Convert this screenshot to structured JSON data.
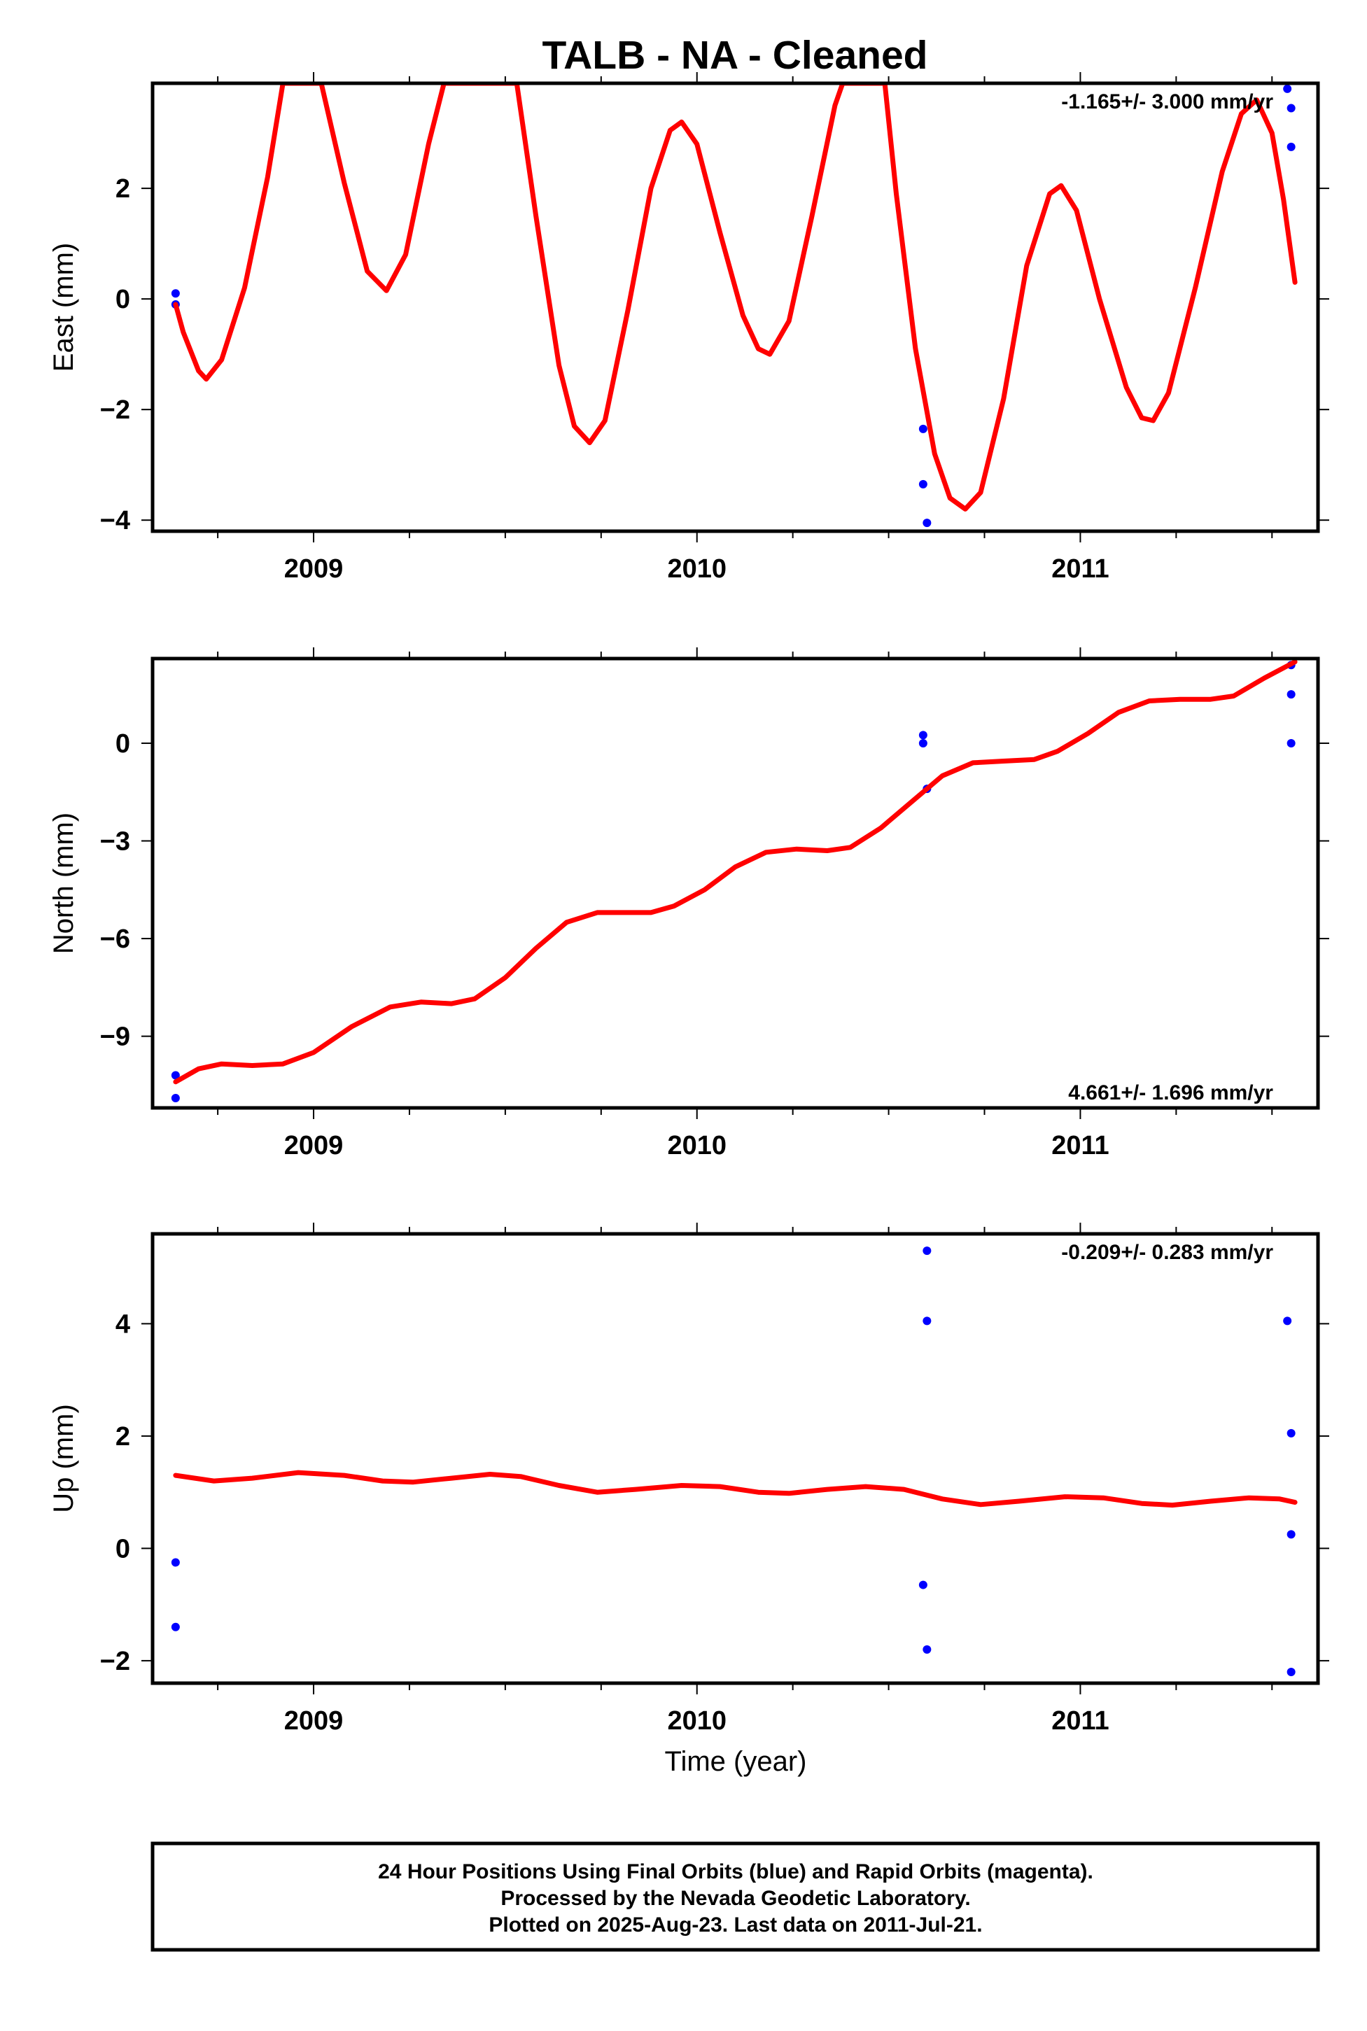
{
  "title": "TALB  - NA - Cleaned",
  "xlabel": "Time (year)",
  "colors": {
    "model": "#ff0000",
    "final_orbits": "#0000ff",
    "frame": "#000000"
  },
  "footer": {
    "line1": "24 Hour Positions Using Final Orbits (blue) and Rapid Orbits (magenta).",
    "line2": "Processed by the Nevada Geodetic Laboratory.",
    "line3": "Plotted on 2025-Aug-23. Last data on 2011-Jul-21."
  },
  "chart_data": [
    {
      "type": "scatter",
      "component": "east",
      "ylabel": "East (mm)",
      "rate_label": "-1.165+/- 3.000 mm/yr",
      "rate_position": "top-right",
      "xlim": [
        2008.58,
        2011.62
      ],
      "ylim": [
        -4.2,
        3.9
      ],
      "x_ticks": [
        2009,
        2010,
        2011
      ],
      "y_ticks": [
        -4,
        -2,
        0,
        2
      ],
      "points": [
        {
          "x": 2008.64,
          "y": 0.1
        },
        {
          "x": 2008.64,
          "y": -0.1
        },
        {
          "x": 2010.59,
          "y": -2.35
        },
        {
          "x": 2010.59,
          "y": -3.35
        },
        {
          "x": 2010.6,
          "y": -4.05
        },
        {
          "x": 2011.54,
          "y": 3.8
        },
        {
          "x": 2011.55,
          "y": 3.45
        },
        {
          "x": 2011.55,
          "y": 2.75
        }
      ],
      "model": [
        [
          2008.64,
          -0.1
        ],
        [
          2008.66,
          -0.6
        ],
        [
          2008.7,
          -1.3
        ],
        [
          2008.72,
          -1.45
        ],
        [
          2008.76,
          -1.1
        ],
        [
          2008.82,
          0.2
        ],
        [
          2008.88,
          2.2
        ],
        [
          2008.92,
          3.9
        ],
        [
          2009.02,
          3.9
        ],
        [
          2009.08,
          2.1
        ],
        [
          2009.14,
          0.5
        ],
        [
          2009.19,
          0.15
        ],
        [
          2009.24,
          0.8
        ],
        [
          2009.3,
          2.8
        ],
        [
          2009.34,
          3.9
        ],
        [
          2009.53,
          3.9
        ],
        [
          2009.58,
          1.5
        ],
        [
          2009.64,
          -1.2
        ],
        [
          2009.68,
          -2.3
        ],
        [
          2009.72,
          -2.6
        ],
        [
          2009.76,
          -2.2
        ],
        [
          2009.82,
          -0.2
        ],
        [
          2009.88,
          2.0
        ],
        [
          2009.93,
          3.05
        ],
        [
          2009.96,
          3.2
        ],
        [
          2010.0,
          2.8
        ],
        [
          2010.06,
          1.2
        ],
        [
          2010.12,
          -0.3
        ],
        [
          2010.16,
          -0.9
        ],
        [
          2010.19,
          -1.0
        ],
        [
          2010.24,
          -0.4
        ],
        [
          2010.3,
          1.5
        ],
        [
          2010.36,
          3.5
        ],
        [
          2010.38,
          3.9
        ],
        [
          2010.49,
          3.9
        ],
        [
          2010.52,
          1.9
        ],
        [
          2010.57,
          -0.9
        ],
        [
          2010.62,
          -2.8
        ],
        [
          2010.66,
          -3.6
        ],
        [
          2010.7,
          -3.8
        ],
        [
          2010.74,
          -3.5
        ],
        [
          2010.8,
          -1.8
        ],
        [
          2010.86,
          0.6
        ],
        [
          2010.92,
          1.9
        ],
        [
          2010.95,
          2.05
        ],
        [
          2010.99,
          1.6
        ],
        [
          2011.05,
          0.0
        ],
        [
          2011.12,
          -1.6
        ],
        [
          2011.16,
          -2.15
        ],
        [
          2011.19,
          -2.2
        ],
        [
          2011.23,
          -1.7
        ],
        [
          2011.3,
          0.2
        ],
        [
          2011.37,
          2.3
        ],
        [
          2011.42,
          3.35
        ],
        [
          2011.46,
          3.6
        ],
        [
          2011.5,
          3.0
        ],
        [
          2011.53,
          1.8
        ],
        [
          2011.56,
          0.3
        ]
      ]
    },
    {
      "type": "scatter",
      "component": "north",
      "ylabel": "North (mm)",
      "rate_label": "4.661+/- 1.696 mm/yr",
      "rate_position": "bottom-right",
      "xlim": [
        2008.58,
        2011.62
      ],
      "ylim": [
        -11.2,
        2.6
      ],
      "x_ticks": [
        2009,
        2010,
        2011
      ],
      "y_ticks": [
        -9,
        -6,
        -3,
        0
      ],
      "points": [
        {
          "x": 2008.64,
          "y": -10.2
        },
        {
          "x": 2008.64,
          "y": -10.9
        },
        {
          "x": 2010.59,
          "y": 0.25
        },
        {
          "x": 2010.59,
          "y": 0.0
        },
        {
          "x": 2010.6,
          "y": -1.4
        },
        {
          "x": 2011.55,
          "y": 2.4
        },
        {
          "x": 2011.55,
          "y": 1.5
        },
        {
          "x": 2011.55,
          "y": 0.0
        }
      ],
      "model": [
        [
          2008.64,
          -10.4
        ],
        [
          2008.7,
          -10.0
        ],
        [
          2008.76,
          -9.85
        ],
        [
          2008.84,
          -9.9
        ],
        [
          2008.92,
          -9.85
        ],
        [
          2009.0,
          -9.5
        ],
        [
          2009.1,
          -8.7
        ],
        [
          2009.2,
          -8.1
        ],
        [
          2009.28,
          -7.95
        ],
        [
          2009.36,
          -8.0
        ],
        [
          2009.42,
          -7.85
        ],
        [
          2009.5,
          -7.2
        ],
        [
          2009.58,
          -6.3
        ],
        [
          2009.66,
          -5.5
        ],
        [
          2009.74,
          -5.2
        ],
        [
          2009.82,
          -5.2
        ],
        [
          2009.88,
          -5.2
        ],
        [
          2009.94,
          -5.0
        ],
        [
          2010.02,
          -4.5
        ],
        [
          2010.1,
          -3.8
        ],
        [
          2010.18,
          -3.35
        ],
        [
          2010.26,
          -3.25
        ],
        [
          2010.34,
          -3.3
        ],
        [
          2010.4,
          -3.2
        ],
        [
          2010.48,
          -2.6
        ],
        [
          2010.56,
          -1.8
        ],
        [
          2010.64,
          -1.0
        ],
        [
          2010.72,
          -0.6
        ],
        [
          2010.8,
          -0.55
        ],
        [
          2010.88,
          -0.5
        ],
        [
          2010.94,
          -0.25
        ],
        [
          2011.02,
          0.3
        ],
        [
          2011.1,
          0.95
        ],
        [
          2011.18,
          1.3
        ],
        [
          2011.26,
          1.35
        ],
        [
          2011.34,
          1.35
        ],
        [
          2011.4,
          1.45
        ],
        [
          2011.48,
          2.0
        ],
        [
          2011.56,
          2.5
        ]
      ]
    },
    {
      "type": "scatter",
      "component": "up",
      "ylabel": "Up (mm)",
      "rate_label": "-0.209+/- 0.283 mm/yr",
      "rate_position": "top-right",
      "xlim": [
        2008.58,
        2011.62
      ],
      "ylim": [
        -2.4,
        5.6
      ],
      "x_ticks": [
        2009,
        2010,
        2011
      ],
      "y_ticks": [
        -2,
        0,
        2,
        4
      ],
      "points": [
        {
          "x": 2008.64,
          "y": -0.25
        },
        {
          "x": 2008.64,
          "y": -1.4
        },
        {
          "x": 2010.6,
          "y": 5.3
        },
        {
          "x": 2010.6,
          "y": 4.05
        },
        {
          "x": 2010.59,
          "y": -0.65
        },
        {
          "x": 2010.6,
          "y": -1.8
        },
        {
          "x": 2011.54,
          "y": 4.05
        },
        {
          "x": 2011.55,
          "y": 2.05
        },
        {
          "x": 2011.55,
          "y": 0.25
        },
        {
          "x": 2011.55,
          "y": -2.2
        }
      ],
      "model": [
        [
          2008.64,
          1.3
        ],
        [
          2008.74,
          1.2
        ],
        [
          2008.84,
          1.25
        ],
        [
          2008.96,
          1.35
        ],
        [
          2009.08,
          1.3
        ],
        [
          2009.18,
          1.2
        ],
        [
          2009.26,
          1.18
        ],
        [
          2009.36,
          1.25
        ],
        [
          2009.46,
          1.32
        ],
        [
          2009.54,
          1.28
        ],
        [
          2009.64,
          1.12
        ],
        [
          2009.74,
          1.0
        ],
        [
          2009.84,
          1.05
        ],
        [
          2009.96,
          1.12
        ],
        [
          2010.06,
          1.1
        ],
        [
          2010.16,
          1.0
        ],
        [
          2010.24,
          0.98
        ],
        [
          2010.34,
          1.05
        ],
        [
          2010.44,
          1.1
        ],
        [
          2010.54,
          1.05
        ],
        [
          2010.64,
          0.88
        ],
        [
          2010.74,
          0.78
        ],
        [
          2010.84,
          0.84
        ],
        [
          2010.96,
          0.92
        ],
        [
          2011.06,
          0.9
        ],
        [
          2011.16,
          0.8
        ],
        [
          2011.24,
          0.77
        ],
        [
          2011.34,
          0.84
        ],
        [
          2011.44,
          0.9
        ],
        [
          2011.52,
          0.88
        ],
        [
          2011.56,
          0.82
        ]
      ]
    }
  ]
}
